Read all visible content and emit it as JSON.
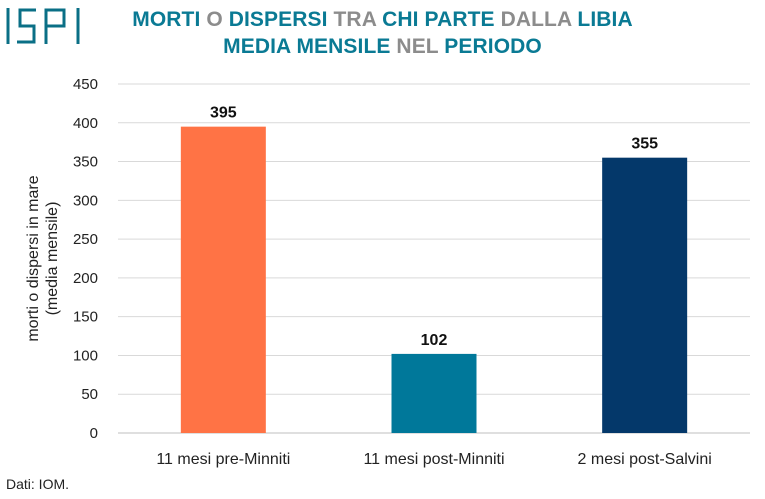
{
  "logo": {
    "text": "ISPI",
    "color": "#0a6f86"
  },
  "title": {
    "line1": [
      {
        "text": "MORTI",
        "color": "#0a7a94"
      },
      {
        "text": " O ",
        "color": "#8c8c8c"
      },
      {
        "text": "DISPERSI",
        "color": "#0a7a94"
      },
      {
        "text": " TRA ",
        "color": "#8c8c8c"
      },
      {
        "text": "CHI PARTE",
        "color": "#0a7a94"
      },
      {
        "text": " DALLA ",
        "color": "#8c8c8c"
      },
      {
        "text": "LIBIA",
        "color": "#0a7a94"
      }
    ],
    "line2": [
      {
        "text": "MEDIA MENSILE",
        "color": "#0a7a94"
      },
      {
        "text": " NEL ",
        "color": "#8c8c8c"
      },
      {
        "text": "PERIODO",
        "color": "#0a7a94"
      }
    ]
  },
  "source": "Dati: IOM.",
  "chart_data": {
    "type": "bar",
    "categories": [
      "11 mesi pre-Minniti",
      "11 mesi post-Minniti",
      "2 mesi post-Salvini"
    ],
    "values": [
      395,
      102,
      355
    ],
    "colors": [
      "#ff7345",
      "#00789a",
      "#04386a"
    ],
    "ylabel_lines": [
      "morti o dispersi in mare",
      "(media mensile)"
    ],
    "ylim": [
      0,
      450
    ],
    "yticks": [
      0,
      50,
      100,
      150,
      200,
      250,
      300,
      350,
      400,
      450
    ],
    "grid": true,
    "grid_color": "#d9d9d9",
    "data_labels": [
      "395",
      "102",
      "355"
    ]
  }
}
